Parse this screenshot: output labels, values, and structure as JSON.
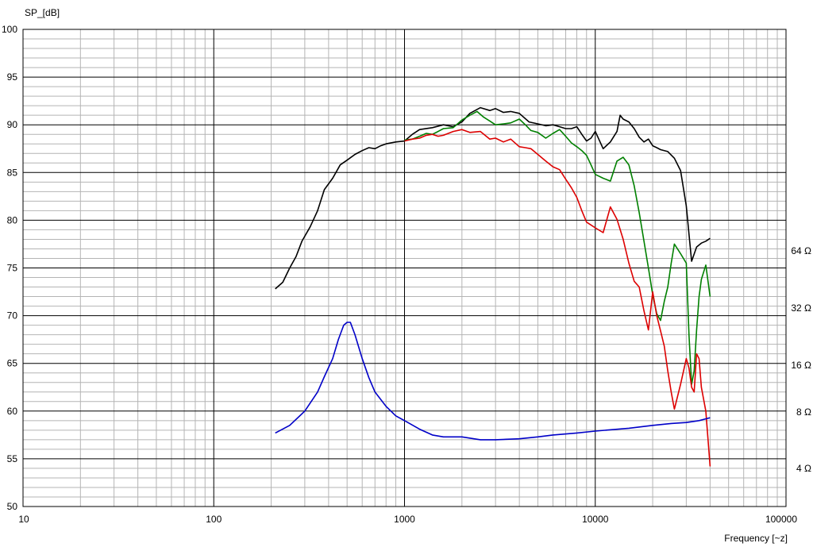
{
  "chart_data": {
    "type": "line",
    "ylabel": "SP_[dB]",
    "xlabel": "Frequency [~z]",
    "x_scale": "log",
    "xlim": [
      10,
      100000
    ],
    "ylim": [
      50,
      100
    ],
    "x_ticks": [
      {
        "value": 10,
        "label": "10"
      },
      {
        "value": 100,
        "label": "100"
      },
      {
        "value": 1000,
        "label": "1000"
      },
      {
        "value": 10000,
        "label": "10000"
      },
      {
        "value": 100000,
        "label": "100000"
      }
    ],
    "y_ticks": [
      {
        "value": 100,
        "label": "100"
      },
      {
        "value": 95,
        "label": "95"
      },
      {
        "value": 90,
        "label": "90"
      },
      {
        "value": 85,
        "label": "85"
      },
      {
        "value": 80,
        "label": "80"
      },
      {
        "value": 75,
        "label": "75"
      },
      {
        "value": 70,
        "label": "70"
      },
      {
        "value": 65,
        "label": "65"
      },
      {
        "value": 60,
        "label": "60"
      },
      {
        "value": 55,
        "label": "55"
      },
      {
        "value": 50,
        "label": "50"
      }
    ],
    "right_ticks": [
      {
        "value": 76.8,
        "label": "64 Ω"
      },
      {
        "value": 70.8,
        "label": "32 Ω"
      },
      {
        "value": 64.8,
        "label": "16 Ω"
      },
      {
        "value": 59.9,
        "label": "8 Ω"
      },
      {
        "value": 54.0,
        "label": "4 Ω"
      }
    ],
    "grid": true,
    "series": [
      {
        "color": "#000000",
        "x": [
          210,
          230,
          250,
          270,
          290,
          320,
          350,
          380,
          420,
          460,
          500,
          550,
          600,
          650,
          700,
          750,
          800,
          900,
          1000,
          1100,
          1200,
          1400,
          1600,
          1800,
          2000,
          2200,
          2500,
          2800,
          3000,
          3300,
          3600,
          4000,
          4500,
          5000,
          5500,
          6000,
          6500,
          7000,
          7500,
          8000,
          8500,
          9000,
          9500,
          10000,
          11000,
          12000,
          13000,
          13500,
          14000,
          15000,
          16000,
          17000,
          18000,
          19000,
          20000,
          21000,
          22000,
          24000,
          26000,
          28000,
          30000,
          32000,
          34000,
          36000,
          38000,
          40000
        ],
        "y": [
          72.8,
          73.5,
          75.0,
          76.2,
          77.8,
          79.3,
          81.0,
          83.2,
          84.4,
          85.8,
          86.3,
          86.9,
          87.3,
          87.6,
          87.5,
          87.8,
          88.0,
          88.2,
          88.3,
          89.0,
          89.5,
          89.7,
          90.0,
          89.8,
          90.3,
          91.2,
          91.8,
          91.5,
          91.7,
          91.3,
          91.4,
          91.2,
          90.3,
          90.1,
          89.9,
          90.0,
          89.8,
          89.6,
          89.6,
          89.8,
          89.0,
          88.3,
          88.6,
          89.3,
          87.5,
          88.2,
          89.3,
          91.0,
          90.6,
          90.3,
          89.6,
          88.7,
          88.2,
          88.5,
          87.8,
          87.6,
          87.4,
          87.2,
          86.5,
          85.2,
          81.5,
          75.7,
          77.2,
          77.6,
          77.8,
          78.1
        ]
      },
      {
        "color": "#008000",
        "x": [
          1000,
          1100,
          1200,
          1300,
          1400,
          1500,
          1600,
          1800,
          2000,
          2200,
          2400,
          2600,
          2800,
          3000,
          3300,
          3600,
          4000,
          4300,
          4600,
          5000,
          5500,
          6000,
          6500,
          7000,
          7500,
          8000,
          8500,
          9000,
          9500,
          10000,
          11000,
          12000,
          13000,
          14000,
          15000,
          16000,
          17000,
          18000,
          19000,
          20000,
          21000,
          22000,
          23000,
          24000,
          25000,
          26000,
          28000,
          30000,
          31000,
          32000,
          33000,
          34000,
          35000,
          36000,
          38000,
          40000
        ],
        "y": [
          88.4,
          88.5,
          88.8,
          89.1,
          89.0,
          89.3,
          89.6,
          89.7,
          90.5,
          91.0,
          91.4,
          90.8,
          90.4,
          90.0,
          90.1,
          90.2,
          90.6,
          90.0,
          89.4,
          89.2,
          88.6,
          89.1,
          89.5,
          88.8,
          88.1,
          87.7,
          87.3,
          86.8,
          85.8,
          84.8,
          84.4,
          84.1,
          86.2,
          86.6,
          85.8,
          83.6,
          80.8,
          77.8,
          75.0,
          72.2,
          70.2,
          69.5,
          71.5,
          73.0,
          75.5,
          77.5,
          76.5,
          75.5,
          68.0,
          62.8,
          64.2,
          68.5,
          72.0,
          73.8,
          75.3,
          72.0
        ]
      },
      {
        "color": "#dd0000",
        "x": [
          1000,
          1100,
          1200,
          1300,
          1400,
          1500,
          1600,
          1800,
          2000,
          2200,
          2500,
          2800,
          3000,
          3300,
          3600,
          4000,
          4300,
          4600,
          5000,
          5500,
          6000,
          6500,
          7000,
          7500,
          8000,
          8500,
          9000,
          9500,
          10000,
          11000,
          12000,
          13000,
          14000,
          15000,
          16000,
          17000,
          18000,
          19000,
          20000,
          21000,
          22000,
          23000,
          24000,
          25000,
          26000,
          28000,
          30000,
          31000,
          32000,
          33000,
          34000,
          35000,
          36000,
          38000,
          40000
        ],
        "y": [
          88.3,
          88.5,
          88.6,
          88.9,
          89.0,
          88.8,
          88.9,
          89.3,
          89.5,
          89.2,
          89.3,
          88.5,
          88.6,
          88.2,
          88.5,
          87.7,
          87.6,
          87.5,
          86.9,
          86.2,
          85.6,
          85.3,
          84.3,
          83.4,
          82.4,
          81.0,
          79.8,
          79.5,
          79.2,
          78.7,
          81.4,
          80.1,
          78.0,
          75.5,
          73.6,
          73.0,
          70.5,
          68.5,
          72.5,
          70.0,
          68.4,
          66.8,
          64.2,
          62.0,
          60.2,
          62.8,
          65.5,
          64.5,
          62.5,
          62.0,
          66.0,
          65.5,
          62.5,
          60.0,
          54.2
        ]
      },
      {
        "color": "#0000c8",
        "x": [
          210,
          250,
          300,
          350,
          380,
          420,
          450,
          480,
          500,
          520,
          550,
          600,
          650,
          700,
          800,
          900,
          1000,
          1200,
          1400,
          1600,
          2000,
          2500,
          3000,
          4000,
          5000,
          6000,
          8000,
          10000,
          15000,
          20000,
          25000,
          30000,
          35000,
          40000
        ],
        "y": [
          57.7,
          58.5,
          60.0,
          62.0,
          63.6,
          65.5,
          67.5,
          69.0,
          69.3,
          69.3,
          68.0,
          65.5,
          63.5,
          62.0,
          60.5,
          59.5,
          59.0,
          58.1,
          57.5,
          57.3,
          57.3,
          57.0,
          57.0,
          57.1,
          57.3,
          57.5,
          57.7,
          57.9,
          58.2,
          58.5,
          58.7,
          58.8,
          59.0,
          59.3
        ]
      }
    ]
  }
}
